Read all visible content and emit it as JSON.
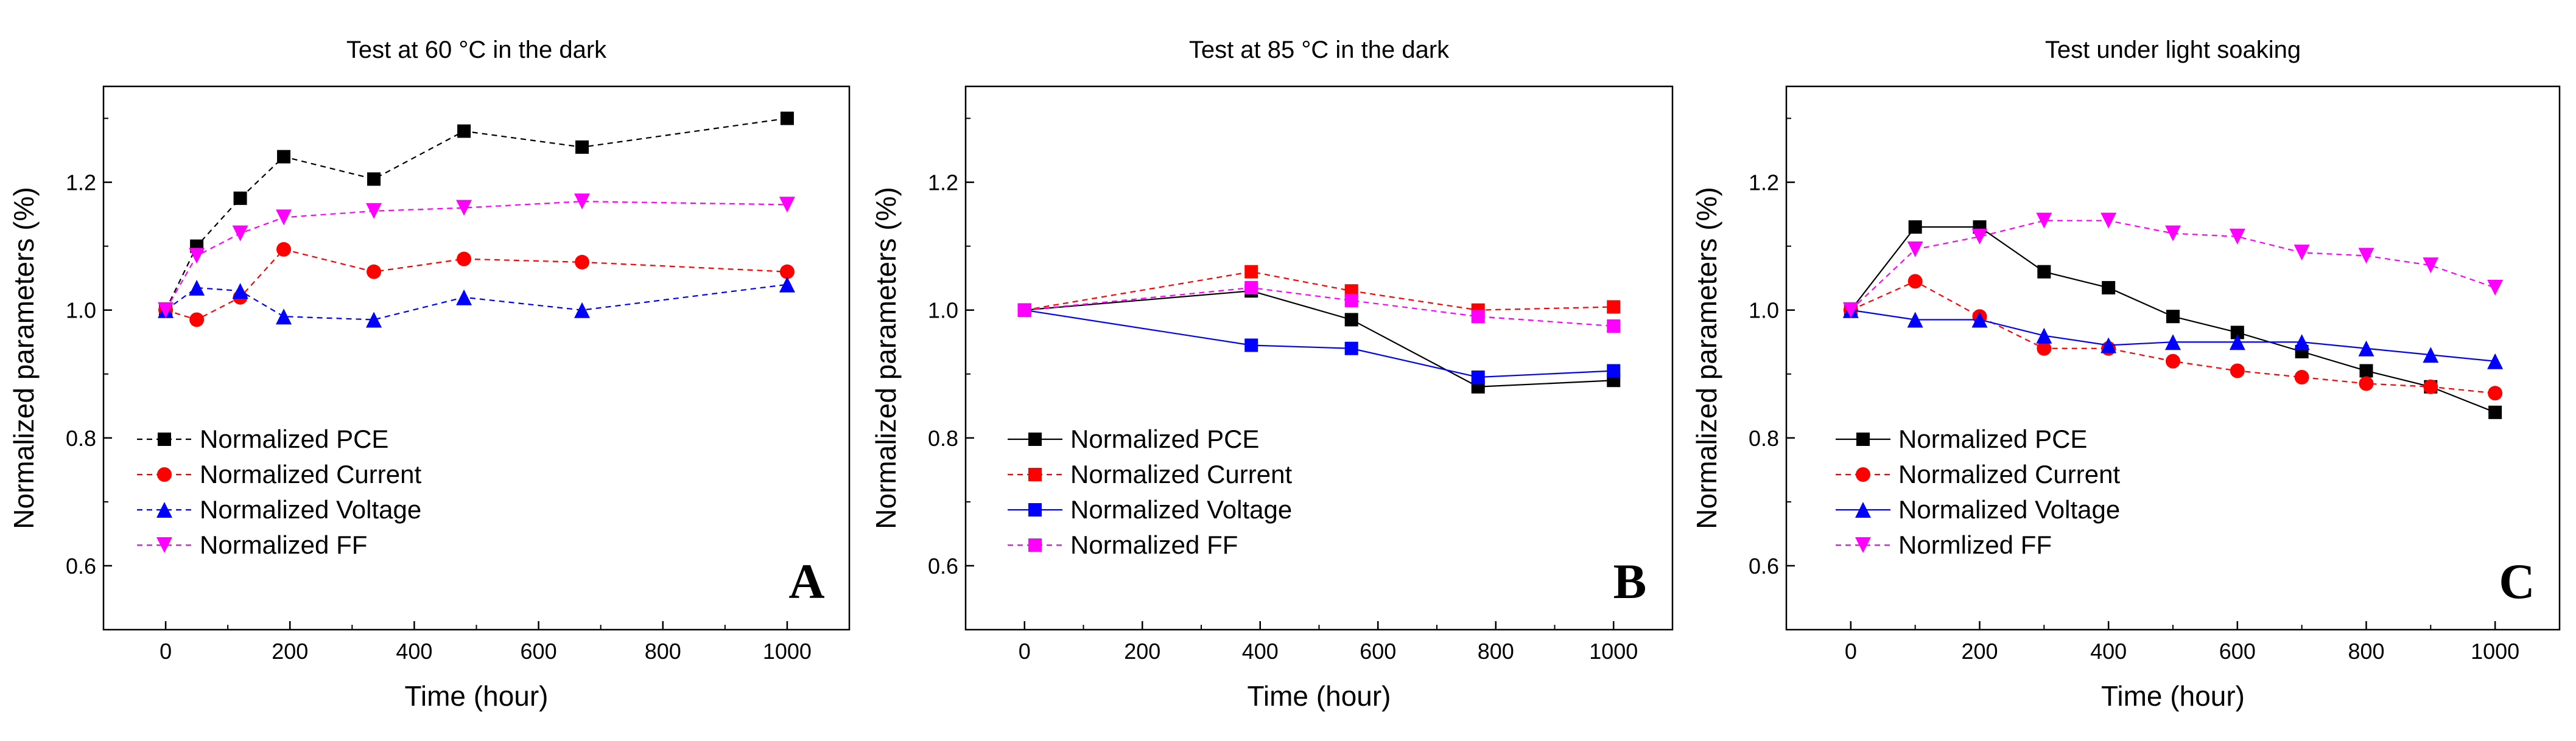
{
  "chart_data": [
    {
      "type": "line",
      "panel_letter": "A",
      "title": "Test at 60 °C in the dark",
      "xlabel": "Time (hour)",
      "ylabel": "Normalized parameters (%)",
      "xlim": [
        -100,
        1100
      ],
      "ylim": [
        0.5,
        1.35
      ],
      "xticks": [
        0,
        200,
        400,
        600,
        800,
        1000
      ],
      "yticks": [
        0.6,
        0.8,
        1.0,
        1.2
      ],
      "xtick_labels": [
        "0",
        "200",
        "400",
        "600",
        "800",
        "1000"
      ],
      "ytick_labels": [
        "0.6",
        "0.8",
        "1.0",
        "1.2"
      ],
      "legend_position": "lower-left",
      "series": [
        {
          "name": "Normalized PCE",
          "color": "#000000",
          "marker": "square",
          "line_style": "dashed",
          "x": [
            0,
            50,
            120,
            190,
            335,
            480,
            670,
            1000
          ],
          "y": [
            1.0,
            1.1,
            1.175,
            1.24,
            1.205,
            1.28,
            1.255,
            1.3
          ]
        },
        {
          "name": "Normalized Current",
          "color": "#ff0000",
          "marker": "circle",
          "line_style": "dashed",
          "x": [
            0,
            50,
            120,
            190,
            335,
            480,
            670,
            1000
          ],
          "y": [
            1.0,
            0.985,
            1.02,
            1.095,
            1.06,
            1.08,
            1.075,
            1.06
          ]
        },
        {
          "name": "Normalized Voltage",
          "color": "#0000ff",
          "marker": "triangle-up",
          "line_style": "dashed",
          "x": [
            0,
            50,
            120,
            190,
            335,
            480,
            670,
            1000
          ],
          "y": [
            1.0,
            1.035,
            1.03,
            0.99,
            0.985,
            1.02,
            1.0,
            1.04
          ]
        },
        {
          "name": "Normalized FF",
          "color": "#ff00ff",
          "marker": "triangle-down",
          "line_style": "dashed",
          "x": [
            0,
            50,
            120,
            190,
            335,
            480,
            670,
            1000
          ],
          "y": [
            1.0,
            1.085,
            1.12,
            1.145,
            1.155,
            1.16,
            1.17,
            1.165
          ]
        }
      ]
    },
    {
      "type": "line",
      "panel_letter": "B",
      "title": "Test at 85 °C in the dark",
      "xlabel": "Time (hour)",
      "ylabel": "Normalized parameters (%)",
      "xlim": [
        -100,
        1100
      ],
      "ylim": [
        0.5,
        1.35
      ],
      "xticks": [
        0,
        200,
        400,
        600,
        800,
        1000
      ],
      "yticks": [
        0.6,
        0.8,
        1.0,
        1.2
      ],
      "xtick_labels": [
        "0",
        "200",
        "400",
        "600",
        "800",
        "1000"
      ],
      "ytick_labels": [
        "0.6",
        "0.8",
        "1.0",
        "1.2"
      ],
      "legend_position": "lower-left",
      "series": [
        {
          "name": "Normalized PCE",
          "color": "#000000",
          "marker": "square",
          "line_style": "solid",
          "x": [
            0,
            385,
            555,
            770,
            1000
          ],
          "y": [
            1.0,
            1.03,
            0.985,
            0.88,
            0.89
          ]
        },
        {
          "name": "Normalized Current",
          "color": "#ff0000",
          "marker": "square",
          "line_style": "dashed",
          "x": [
            0,
            385,
            555,
            770,
            1000
          ],
          "y": [
            1.0,
            1.06,
            1.03,
            1.0,
            1.005
          ]
        },
        {
          "name": "Normalized Voltage",
          "color": "#0000ff",
          "marker": "square",
          "line_style": "solid",
          "x": [
            0,
            385,
            555,
            770,
            1000
          ],
          "y": [
            1.0,
            0.945,
            0.94,
            0.895,
            0.905
          ]
        },
        {
          "name": "Normalized FF",
          "color": "#ff00ff",
          "marker": "square",
          "line_style": "dashed",
          "x": [
            0,
            385,
            555,
            770,
            1000
          ],
          "y": [
            1.0,
            1.035,
            1.015,
            0.99,
            0.975
          ]
        }
      ]
    },
    {
      "type": "line",
      "panel_letter": "C",
      "title": "Test under light soaking",
      "xlabel": "Time (hour)",
      "ylabel": "Normalized parameters (%)",
      "xlim": [
        -100,
        1100
      ],
      "ylim": [
        0.5,
        1.35
      ],
      "xticks": [
        0,
        200,
        400,
        600,
        800,
        1000
      ],
      "yticks": [
        0.6,
        0.8,
        1.0,
        1.2
      ],
      "xtick_labels": [
        "0",
        "200",
        "400",
        "600",
        "800",
        "1000"
      ],
      "ytick_labels": [
        "0.6",
        "0.8",
        "1.0",
        "1.2"
      ],
      "legend_position": "lower-left",
      "series": [
        {
          "name": "Normalized PCE",
          "color": "#000000",
          "marker": "square",
          "line_style": "solid",
          "x": [
            0,
            100,
            200,
            300,
            400,
            500,
            600,
            700,
            800,
            900,
            1000
          ],
          "y": [
            1.0,
            1.13,
            1.13,
            1.06,
            1.035,
            0.99,
            0.965,
            0.935,
            0.905,
            0.88,
            0.84
          ]
        },
        {
          "name": "Normalized Current",
          "color": "#ff0000",
          "marker": "circle",
          "line_style": "dashed",
          "x": [
            0,
            100,
            200,
            300,
            400,
            500,
            600,
            700,
            800,
            900,
            1000
          ],
          "y": [
            1.0,
            1.045,
            0.99,
            0.94,
            0.94,
            0.92,
            0.905,
            0.895,
            0.885,
            0.88,
            0.87
          ]
        },
        {
          "name": "Normalized Voltage",
          "color": "#0000ff",
          "marker": "triangle-up",
          "line_style": "solid",
          "x": [
            0,
            100,
            200,
            300,
            400,
            500,
            600,
            700,
            800,
            900,
            1000
          ],
          "y": [
            1.0,
            0.985,
            0.985,
            0.96,
            0.945,
            0.95,
            0.95,
            0.95,
            0.94,
            0.93,
            0.92
          ]
        },
        {
          "name": "Normlized FF",
          "color": "#ff00ff",
          "marker": "triangle-down",
          "line_style": "dashed",
          "x": [
            0,
            100,
            200,
            300,
            400,
            500,
            600,
            700,
            800,
            900,
            1000
          ],
          "y": [
            1.0,
            1.095,
            1.115,
            1.14,
            1.14,
            1.12,
            1.115,
            1.09,
            1.085,
            1.07,
            1.035
          ]
        }
      ]
    }
  ]
}
